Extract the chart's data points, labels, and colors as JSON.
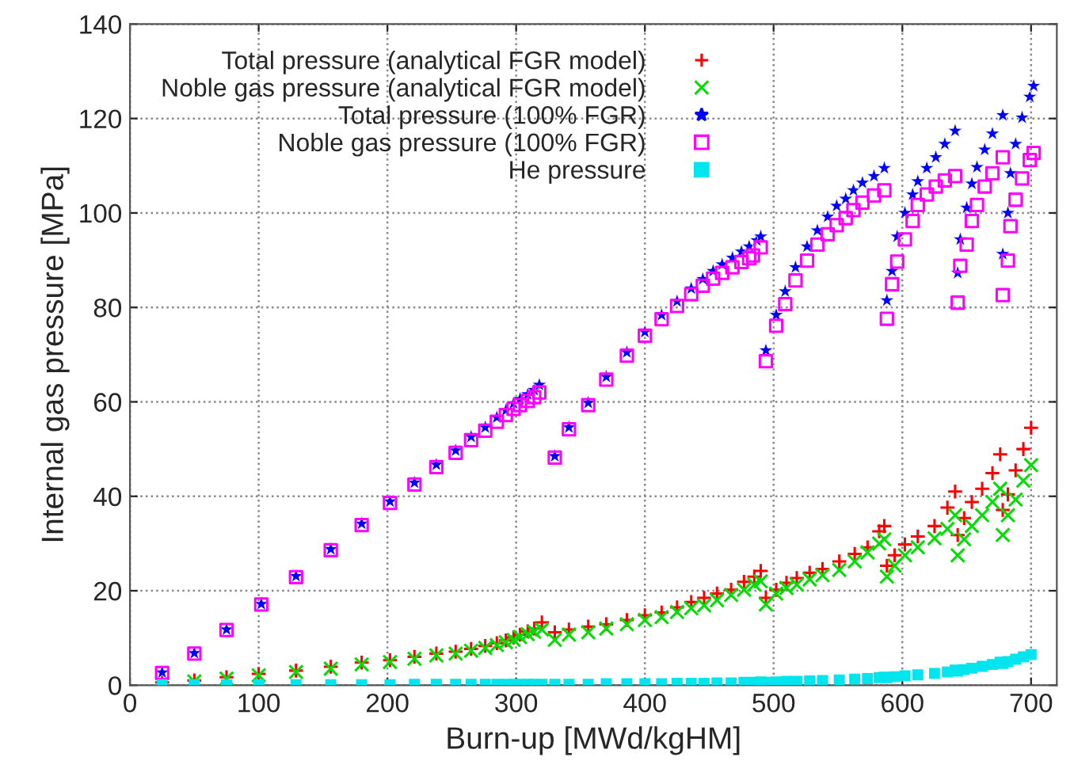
{
  "chart_data": {
    "type": "scatter",
    "xlabel": "Burn-up [MWd/kgHM]",
    "ylabel": "Internal gas pressure [MPa]",
    "xlim": [
      0,
      720
    ],
    "xticks": [
      0,
      100,
      200,
      300,
      400,
      500,
      600,
      700
    ],
    "ylim": [
      0,
      140
    ],
    "yticks": [
      0,
      20,
      40,
      60,
      80,
      100,
      120,
      140
    ],
    "grid": true,
    "legend": "top",
    "series": [
      {
        "name": "Total pressure (analytical FGR model)",
        "color": "#ff0000",
        "marker": "plus",
        "x": [
          25,
          50,
          75,
          100,
          129,
          156,
          180,
          202,
          221,
          238,
          253,
          265,
          276,
          285,
          292,
          298,
          303,
          309,
          314,
          320,
          330,
          341,
          356,
          370,
          386,
          400,
          413,
          425,
          436,
          446,
          456,
          467,
          477,
          485,
          490,
          494,
          502,
          510,
          518,
          528,
          538,
          551,
          563,
          573,
          582,
          586,
          588,
          594,
          602,
          612,
          625,
          635,
          641,
          643,
          648,
          654,
          662,
          670,
          676,
          678,
          682,
          688,
          694,
          700
        ],
        "values": [
          0.6,
          1.0,
          1.7,
          2.4,
          3.1,
          3.9,
          4.8,
          5.3,
          6.0,
          6.7,
          7.1,
          7.7,
          8.3,
          8.9,
          9.5,
          10.1,
          10.7,
          11.4,
          12.0,
          13.3,
          11.2,
          11.8,
          12.4,
          12.9,
          13.8,
          14.8,
          15.4,
          16.5,
          17.6,
          18.5,
          19.4,
          20.2,
          21.9,
          23.0,
          24.2,
          18.5,
          20.2,
          21.7,
          22.7,
          23.8,
          24.6,
          26.2,
          27.8,
          29.2,
          32.6,
          33.7,
          25.3,
          27.5,
          29.8,
          31.5,
          33.7,
          37.6,
          41.0,
          31.8,
          35.4,
          38.8,
          41.6,
          44.9,
          48.9,
          37.1,
          40.4,
          45.5,
          50.0,
          54.5
        ]
      },
      {
        "name": "Noble gas pressure (analytical FGR model)",
        "color": "#00dd00",
        "marker": "cross",
        "x": [
          25,
          50,
          75,
          100,
          129,
          156,
          180,
          202,
          221,
          238,
          253,
          265,
          276,
          285,
          292,
          298,
          303,
          309,
          314,
          320,
          330,
          341,
          356,
          370,
          386,
          400,
          413,
          425,
          436,
          446,
          456,
          467,
          477,
          485,
          490,
          494,
          502,
          510,
          518,
          528,
          538,
          551,
          563,
          573,
          582,
          586,
          588,
          594,
          602,
          612,
          625,
          635,
          641,
          643,
          648,
          654,
          662,
          670,
          676,
          678,
          682,
          688,
          694,
          700
        ],
        "values": [
          0.4,
          0.8,
          1.4,
          2.1,
          2.8,
          3.5,
          4.4,
          4.9,
          5.6,
          6.3,
          6.7,
          7.3,
          7.9,
          8.5,
          9.1,
          9.6,
          10.2,
          10.8,
          11.3,
          11.8,
          9.6,
          10.7,
          11.2,
          12.0,
          12.9,
          13.8,
          14.4,
          15.5,
          16.3,
          16.9,
          18.0,
          19.1,
          20.2,
          21.3,
          22.0,
          17.1,
          19.4,
          20.6,
          21.3,
          22.4,
          23.3,
          24.4,
          26.2,
          28.1,
          30.0,
          30.9,
          23.0,
          25.3,
          27.5,
          29.2,
          31.1,
          33.1,
          36.0,
          27.5,
          30.9,
          33.7,
          36.0,
          38.8,
          41.6,
          31.8,
          36.0,
          39.3,
          43.3,
          46.6
        ]
      },
      {
        "name": "Total pressure (100% FGR)",
        "color": "#0000ff",
        "marker": "star",
        "x": [
          25,
          50,
          75,
          102,
          129,
          156,
          180,
          202,
          221,
          238,
          253,
          265,
          276,
          285,
          292,
          298,
          303,
          309,
          314,
          318,
          330,
          341,
          356,
          370,
          386,
          400,
          413,
          425,
          436,
          445,
          453,
          460,
          468,
          475,
          481,
          487,
          490,
          494,
          502,
          509,
          517,
          526,
          534,
          542,
          549,
          556,
          562,
          569,
          578,
          586,
          588,
          592,
          596,
          602,
          608,
          612,
          619,
          626,
          633,
          641,
          643,
          645,
          650,
          654,
          658,
          664,
          670,
          678,
          678,
          682,
          684,
          688,
          693,
          699,
          702
        ],
        "values": [
          2.7,
          6.8,
          11.8,
          17.2,
          23.1,
          28.8,
          34.2,
          38.9,
          42.9,
          46.7,
          49.7,
          52.6,
          54.6,
          56.7,
          58.2,
          59.7,
          60.6,
          61.6,
          62.5,
          63.6,
          48.5,
          54.6,
          59.8,
          65.3,
          70.5,
          74.8,
          78.4,
          81.3,
          84.0,
          86.0,
          87.7,
          89.1,
          90.5,
          91.8,
          92.9,
          94.2,
          95.0,
          70.9,
          78.4,
          83.4,
          88.5,
          92.9,
          96.3,
          99.2,
          101.5,
          103.0,
          104.8,
          106.4,
          107.8,
          109.5,
          81.5,
          87.7,
          95.0,
          100.0,
          103.9,
          106.7,
          109.5,
          111.8,
          114.6,
          117.4,
          87.3,
          94.4,
          101.1,
          106.2,
          109.7,
          113.4,
          116.8,
          120.7,
          91.3,
          100.0,
          108.4,
          114.6,
          120.2,
          124.6,
          126.9
        ]
      },
      {
        "name": "Noble gas pressure (100% FGR)",
        "color": "#ff00ff",
        "marker": "square_open",
        "x": [
          25,
          50,
          75,
          102,
          129,
          156,
          180,
          202,
          221,
          238,
          253,
          265,
          276,
          285,
          292,
          298,
          303,
          309,
          314,
          318,
          330,
          341,
          356,
          370,
          386,
          400,
          413,
          425,
          436,
          445,
          453,
          460,
          468,
          475,
          481,
          484,
          490,
          494,
          502,
          509,
          517,
          526,
          534,
          542,
          549,
          556,
          562,
          569,
          578,
          586,
          588,
          592,
          596,
          602,
          608,
          612,
          619,
          626,
          633,
          641,
          643,
          645,
          650,
          654,
          658,
          664,
          670,
          678,
          678,
          682,
          684,
          688,
          693,
          699,
          702
        ],
        "values": [
          2.6,
          6.7,
          11.7,
          17.1,
          22.9,
          28.6,
          33.9,
          38.6,
          42.5,
          46.2,
          49.2,
          51.9,
          53.9,
          55.8,
          57.2,
          58.5,
          59.3,
          60.2,
          61.0,
          62.0,
          48.2,
          54.2,
          59.3,
          64.7,
          69.8,
          74.0,
          77.5,
          80.3,
          82.8,
          84.6,
          86.1,
          87.3,
          88.5,
          89.6,
          90.4,
          91.0,
          92.7,
          68.6,
          76.1,
          80.7,
          85.7,
          89.9,
          93.3,
          95.5,
          97.4,
          98.9,
          100.6,
          102.2,
          103.7,
          104.8,
          77.6,
          84.9,
          89.7,
          94.4,
          98.3,
          101.7,
          103.9,
          105.6,
          106.9,
          107.8,
          81.0,
          88.8,
          93.3,
          98.3,
          101.7,
          105.6,
          108.4,
          111.8,
          82.6,
          89.9,
          97.2,
          102.8,
          107.3,
          111.2,
          112.7
        ]
      },
      {
        "name": "He pressure",
        "color": "#00e5ee",
        "marker": "square",
        "x": [
          25,
          50,
          75,
          100,
          129,
          156,
          180,
          202,
          221,
          238,
          253,
          265,
          276,
          285,
          292,
          298,
          303,
          309,
          314,
          320,
          330,
          341,
          356,
          370,
          386,
          400,
          413,
          425,
          436,
          446,
          456,
          467,
          477,
          485,
          490,
          494,
          502,
          510,
          518,
          528,
          538,
          551,
          563,
          573,
          582,
          586,
          588,
          594,
          602,
          612,
          625,
          635,
          641,
          643,
          648,
          654,
          662,
          670,
          676,
          678,
          682,
          688,
          694,
          700
        ],
        "values": [
          0.1,
          0.1,
          0.1,
          0.1,
          0.1,
          0.1,
          0.1,
          0.1,
          0.2,
          0.2,
          0.2,
          0.2,
          0.2,
          0.2,
          0.2,
          0.2,
          0.2,
          0.2,
          0.2,
          0.2,
          0.2,
          0.2,
          0.2,
          0.3,
          0.3,
          0.3,
          0.3,
          0.4,
          0.4,
          0.4,
          0.5,
          0.5,
          0.6,
          0.6,
          0.7,
          0.6,
          0.7,
          0.8,
          0.8,
          0.9,
          1.0,
          1.1,
          1.3,
          1.4,
          1.6,
          1.7,
          1.6,
          1.8,
          2.0,
          2.2,
          2.5,
          2.8,
          3.2,
          3.0,
          3.3,
          3.6,
          4.0,
          4.4,
          4.9,
          4.6,
          5.0,
          5.5,
          6.0,
          6.5
        ]
      }
    ]
  }
}
